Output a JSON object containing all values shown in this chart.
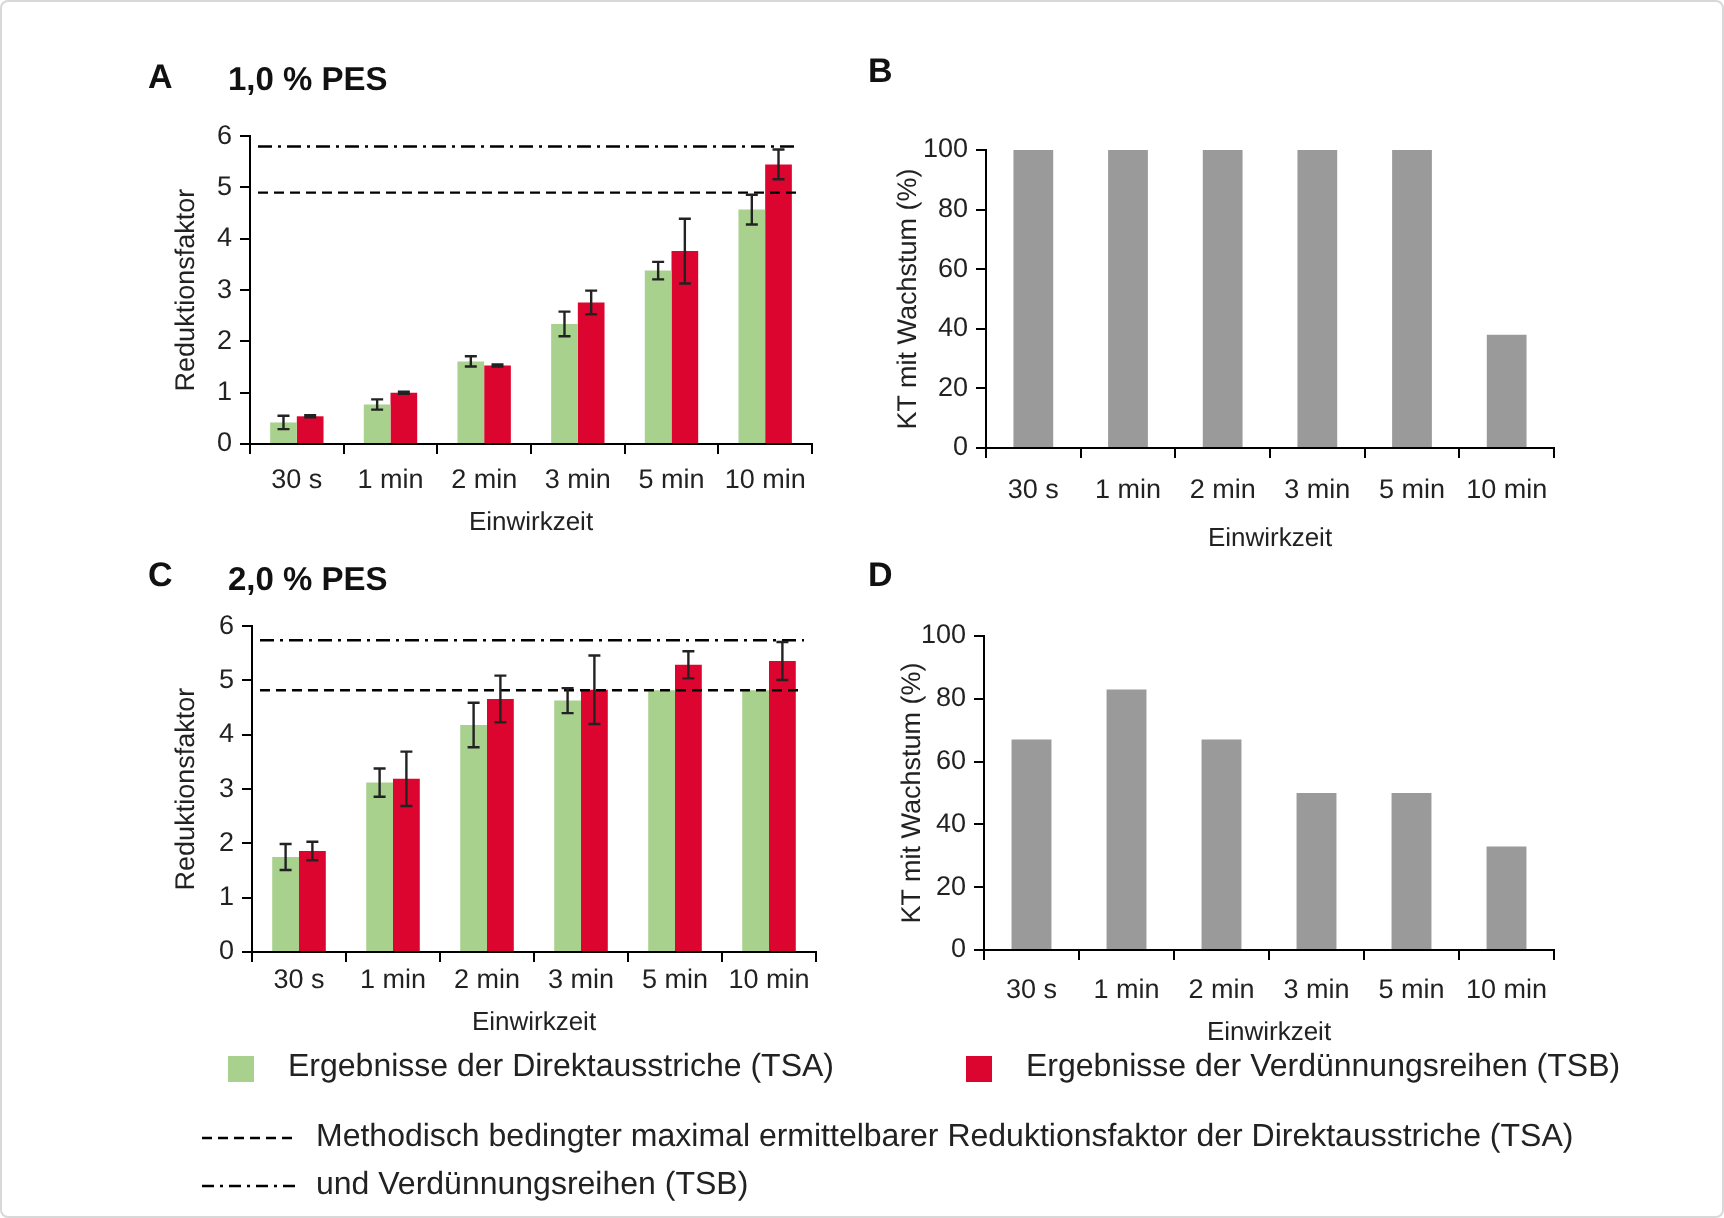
{
  "chart_data": [
    {
      "type": "bar",
      "title": "1,0 % PES",
      "annotations": [
        "A"
      ],
      "xlabel": "Einwirkzeit",
      "ylabel": "Reduktionsfaktor",
      "categories": [
        "30 s",
        "1 min",
        "2 min",
        "3 min",
        "5 min",
        "10 min"
      ],
      "series": [
        {
          "color": "#a9d18e",
          "values": [
            0.42,
            0.77,
            1.61,
            2.34,
            3.38,
            4.57
          ],
          "errors": [
            0.13,
            0.1,
            0.1,
            0.24,
            0.17,
            0.29
          ]
        },
        {
          "color": "#dc0530",
          "values": [
            0.54,
            1.0,
            1.53,
            2.76,
            3.76,
            5.45
          ],
          "errors": [
            0.02,
            0.02,
            0.02,
            0.23,
            0.63,
            0.29
          ]
        }
      ],
      "ylim": [
        0,
        6
      ],
      "yticks": [
        0,
        1,
        2,
        3,
        4,
        5,
        6
      ],
      "ref_lines": [
        {
          "axis": "y",
          "value": 4.9,
          "color": "#000000",
          "line_style": "dashed"
        },
        {
          "axis": "y",
          "value": 5.8,
          "color": "#000000",
          "line_style": "dashdot"
        }
      ]
    },
    {
      "type": "bar",
      "annotations": [
        "B"
      ],
      "xlabel": "Einwirkzeit",
      "ylabel": "KT mit Wachstum (%)",
      "categories": [
        "30 s",
        "1 min",
        "2 min",
        "3 min",
        "5 min",
        "10 min"
      ],
      "values": [
        100,
        100,
        100,
        100,
        100,
        38
      ],
      "color": "#9a9a9a",
      "ylim": [
        0,
        100
      ],
      "yticks": [
        0,
        20,
        40,
        60,
        80,
        100
      ]
    },
    {
      "type": "bar",
      "title": "2,0 % PES",
      "annotations": [
        "C"
      ],
      "xlabel": "Einwirkzeit",
      "ylabel": "Reduktionsfaktor",
      "categories": [
        "30 s",
        "1 min",
        "2 min",
        "3 min",
        "5 min",
        "10 min"
      ],
      "series": [
        {
          "name": "Ergebnisse der Direktausstriche (TSA)",
          "color": "#a9d18e",
          "values": [
            1.75,
            3.12,
            4.18,
            4.63,
            4.82,
            4.82
          ],
          "errors": [
            0.24,
            0.26,
            0.41,
            0.23,
            null,
            null
          ]
        },
        {
          "name": "Ergebnisse der Verdünnungsreihen (TSB)",
          "color": "#dc0530",
          "values": [
            1.86,
            3.19,
            4.66,
            4.83,
            5.29,
            5.36
          ],
          "errors": [
            0.17,
            0.5,
            0.43,
            0.63,
            0.25,
            0.35
          ]
        }
      ],
      "ylim": [
        0,
        6
      ],
      "yticks": [
        0,
        1,
        2,
        3,
        4,
        5,
        6
      ],
      "legend": "bottom",
      "ref_lines": [
        {
          "axis": "y",
          "value": 4.82,
          "color": "#000000",
          "line_style": "dashed",
          "label": "Methodisch bedingter maximal ermittelbarer Reduktionsfaktor der Direktausstriche (TSA)"
        },
        {
          "axis": "y",
          "value": 5.74,
          "color": "#000000",
          "line_style": "dashdot",
          "label": "und Verdünnungsreihen (TSB)"
        }
      ]
    },
    {
      "type": "bar",
      "annotations": [
        "D"
      ],
      "xlabel": "Einwirkzeit",
      "ylabel": "KT mit Wachstum (%)",
      "categories": [
        "30 s",
        "1 min",
        "2 min",
        "3 min",
        "5 min",
        "10 min"
      ],
      "values": [
        67,
        83,
        67,
        50,
        50,
        33
      ],
      "color": "#9a9a9a",
      "ylim": [
        0,
        100
      ],
      "yticks": [
        0,
        20,
        40,
        60,
        80,
        100
      ]
    }
  ]
}
